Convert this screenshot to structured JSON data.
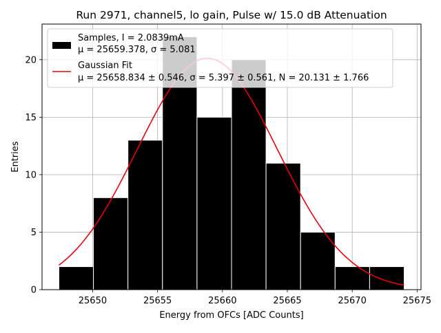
{
  "chart_data": {
    "type": "bar",
    "title": "Run 2971, channel5, lo gain, Pulse w/ 15.0 dB Attenuation",
    "xlabel": "Energy from OFCs [ADC Counts]",
    "ylabel": "Entries",
    "xlim": [
      25646.1,
      25675.3
    ],
    "ylim": [
      0,
      23.1
    ],
    "grid": true,
    "legend_placement": "top-left",
    "x_ticks": [
      "25650",
      "25655",
      "25660",
      "25665",
      "25670",
      "25675"
    ],
    "x_tick_values": [
      25650,
      25655,
      25660,
      25665,
      25670,
      25675
    ],
    "y_ticks": [
      "0",
      "5",
      "10",
      "15",
      "20"
    ],
    "y_tick_values": [
      0,
      5,
      10,
      15,
      20
    ],
    "histogram": {
      "bin_edges": [
        25647.4,
        25650.06,
        25652.72,
        25655.38,
        25658.04,
        25660.7,
        25663.36,
        25666.02,
        25668.68,
        25671.34,
        25674.0
      ],
      "counts": [
        2,
        8,
        13,
        22,
        15,
        20,
        11,
        5,
        2,
        2
      ],
      "color": "#000000",
      "edge_color": "#ffffff"
    },
    "gaussian_fit": {
      "mu": 25658.834,
      "sigma": 5.397,
      "N": 20.131,
      "x_range": [
        25647.4,
        25674.0
      ],
      "color": "#e8000b"
    },
    "legend": [
      {
        "kind": "patch",
        "color": "#000000",
        "line1": "Samples, I = 2.0839mA",
        "line2": "μ = 25659.378, σ = 5.081"
      },
      {
        "kind": "line",
        "color": "#e8000b",
        "line1": "Gaussian Fit",
        "line2": "μ = 25658.834 ± 0.546, σ = 5.397 ± 0.561, N = 20.131 ± 1.766"
      }
    ]
  }
}
